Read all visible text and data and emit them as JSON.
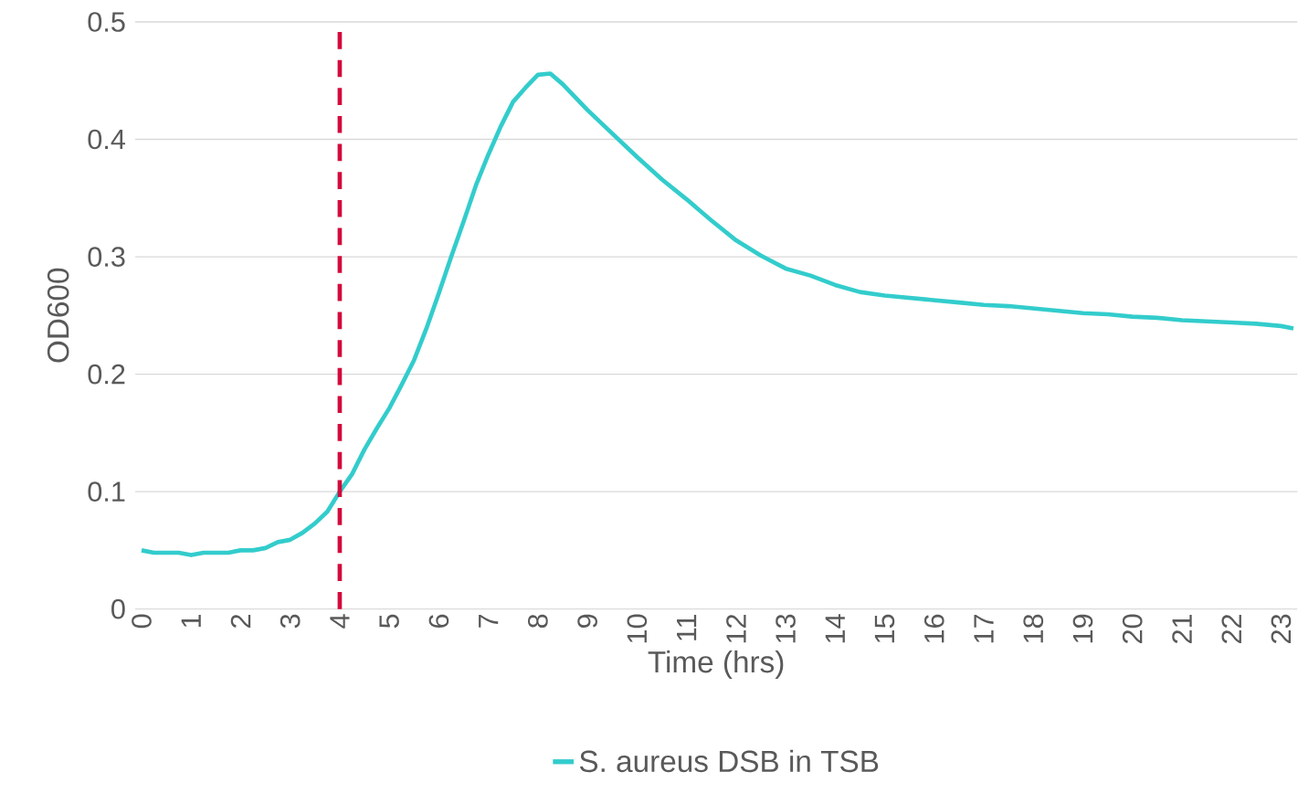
{
  "chart_data": {
    "type": "line",
    "xlabel": "Time (hrs)",
    "ylabel": "OD600",
    "x": [
      0,
      0.25,
      0.5,
      0.75,
      1,
      1.25,
      1.5,
      1.75,
      2,
      2.25,
      2.5,
      2.75,
      3,
      3.25,
      3.5,
      3.75,
      4,
      4.25,
      4.5,
      4.75,
      5,
      5.25,
      5.5,
      5.75,
      6,
      6.25,
      6.5,
      6.75,
      7,
      7.25,
      7.5,
      7.75,
      8,
      8.25,
      8.5,
      8.75,
      9,
      9.5,
      10,
      10.5,
      11,
      11.5,
      12,
      12.5,
      13,
      13.5,
      14,
      14.5,
      15,
      15.5,
      16,
      16.5,
      17,
      17.5,
      18,
      18.5,
      19,
      19.5,
      20,
      20.5,
      21,
      21.5,
      22,
      22.5,
      23,
      23.25
    ],
    "series": [
      {
        "name": "S. aureus DSB in TSB",
        "color": "#33cccc",
        "values": [
          0.05,
          0.048,
          0.048,
          0.048,
          0.046,
          0.048,
          0.048,
          0.048,
          0.05,
          0.05,
          0.052,
          0.057,
          0.059,
          0.065,
          0.073,
          0.083,
          0.1,
          0.115,
          0.136,
          0.154,
          0.171,
          0.191,
          0.212,
          0.239,
          0.269,
          0.3,
          0.33,
          0.361,
          0.387,
          0.411,
          0.432,
          0.444,
          0.455,
          0.456,
          0.447,
          0.436,
          0.425,
          0.405,
          0.385,
          0.366,
          0.349,
          0.331,
          0.314,
          0.301,
          0.29,
          0.284,
          0.276,
          0.27,
          0.267,
          0.265,
          0.263,
          0.261,
          0.259,
          0.258,
          0.256,
          0.254,
          0.252,
          0.251,
          0.249,
          0.248,
          0.246,
          0.245,
          0.244,
          0.243,
          0.241,
          0.239
        ]
      }
    ],
    "xlim": [
      -0.13,
      23.33
    ],
    "ylim": [
      0,
      0.5
    ],
    "xticks": [
      0,
      1,
      2,
      3,
      4,
      5,
      6,
      7,
      8,
      9,
      10,
      11,
      12,
      13,
      14,
      15,
      16,
      17,
      18,
      19,
      20,
      21,
      22,
      23
    ],
    "yticks": [
      0,
      0.1,
      0.2,
      0.3,
      0.4,
      0.5
    ],
    "grid": "y",
    "legend": "bottom",
    "ref_lines": [
      {
        "axis": "x",
        "value": 4,
        "color": "#d20a3c",
        "line_style": "dashed"
      }
    ]
  }
}
